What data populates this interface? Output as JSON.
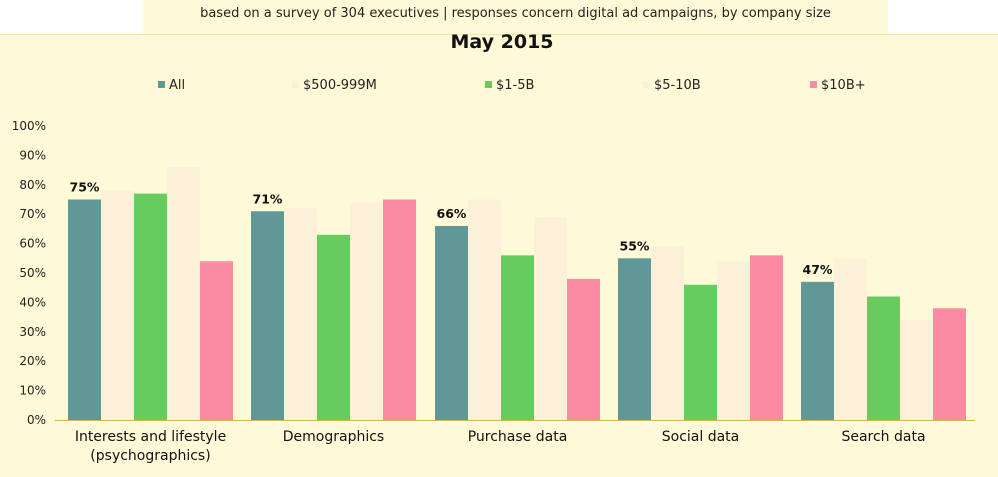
{
  "subtitle": "based on a survey of 304 executives | responses concern digital ad campaigns, by company size",
  "colors": {
    "panel_bg": "#fefad8",
    "axis": "#ccbb55"
  },
  "chart_data": {
    "type": "bar",
    "title": "May 2015",
    "subtitle": "based on a survey of 304 executives | responses concern digital ad campaigns, by company size",
    "xlabel": "",
    "ylabel": "",
    "ylim": [
      0,
      100
    ],
    "y_ticks": [
      "0%",
      "10%",
      "20%",
      "30%",
      "40%",
      "50%",
      "60%",
      "70%",
      "80%",
      "90%",
      "100%"
    ],
    "grid": false,
    "legend_position": "top",
    "categories": [
      [
        "Interests and lifestyle",
        "(psychographics)"
      ],
      [
        "Demographics"
      ],
      [
        "Purchase data"
      ],
      [
        "Social data"
      ],
      [
        "Search data"
      ]
    ],
    "series": [
      {
        "name": "All",
        "color": "#5f9896",
        "values": [
          75,
          71,
          66,
          55,
          47
        ]
      },
      {
        "name": "$500-999M",
        "color": "#fdf0d8",
        "values": [
          78,
          72,
          75,
          59,
          55
        ]
      },
      {
        "name": "$1-5B",
        "color": "#66cc5e",
        "values": [
          77,
          63,
          56,
          46,
          42
        ]
      },
      {
        "name": "$5-10B",
        "color": "#fdf0d8",
        "values": [
          86,
          74,
          69,
          54,
          34
        ]
      },
      {
        "name": "$10B+",
        "color": "#fb8ba0",
        "values": [
          54,
          75,
          48,
          56,
          38
        ]
      }
    ],
    "data_labels": {
      "series": "All",
      "texts": [
        "75%",
        "71%",
        "66%",
        "55%",
        "47%"
      ]
    }
  }
}
